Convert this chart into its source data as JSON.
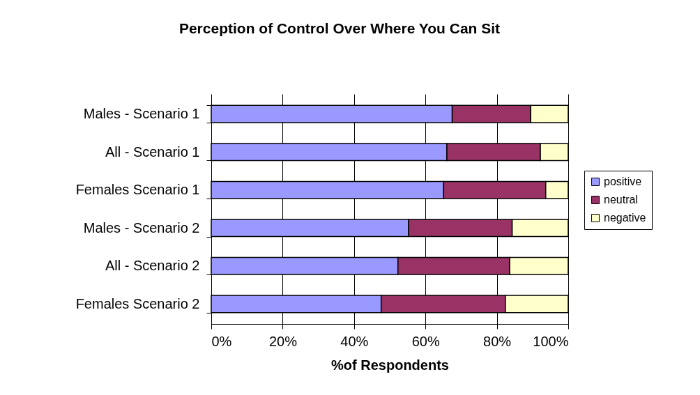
{
  "chart_data": {
    "type": "bar",
    "orientation": "horizontal",
    "stacked": true,
    "title": "Perception of Control Over Where You Can Sit",
    "xlabel": "%of Respondents",
    "categories": [
      "Males - Scenario 1",
      "All - Scenario 1",
      "Females Scenario 1",
      "Males - Scenario 2",
      "All - Scenario 2",
      "Females Scenario 2"
    ],
    "series": [
      {
        "name": "positive",
        "color": "#9999ff",
        "values": [
          67.5,
          66.0,
          65.1,
          55.3,
          52.3,
          47.6
        ]
      },
      {
        "name": "neutral",
        "color": "#993366",
        "values": [
          22.0,
          26.2,
          28.6,
          29.0,
          31.3,
          34.8
        ]
      },
      {
        "name": "negative",
        "color": "#ffffcc",
        "values": [
          10.5,
          7.8,
          6.3,
          15.7,
          16.4,
          17.6
        ]
      }
    ],
    "xlim": [
      0,
      100
    ],
    "xticks": [
      {
        "value": 0,
        "label": "0%"
      },
      {
        "value": 20,
        "label": "20%"
      },
      {
        "value": 40,
        "label": "40%"
      },
      {
        "value": 60,
        "label": "60%"
      },
      {
        "value": 80,
        "label": "80%"
      },
      {
        "value": 100,
        "label": "100%"
      }
    ],
    "grid": "x",
    "legend": "right"
  }
}
